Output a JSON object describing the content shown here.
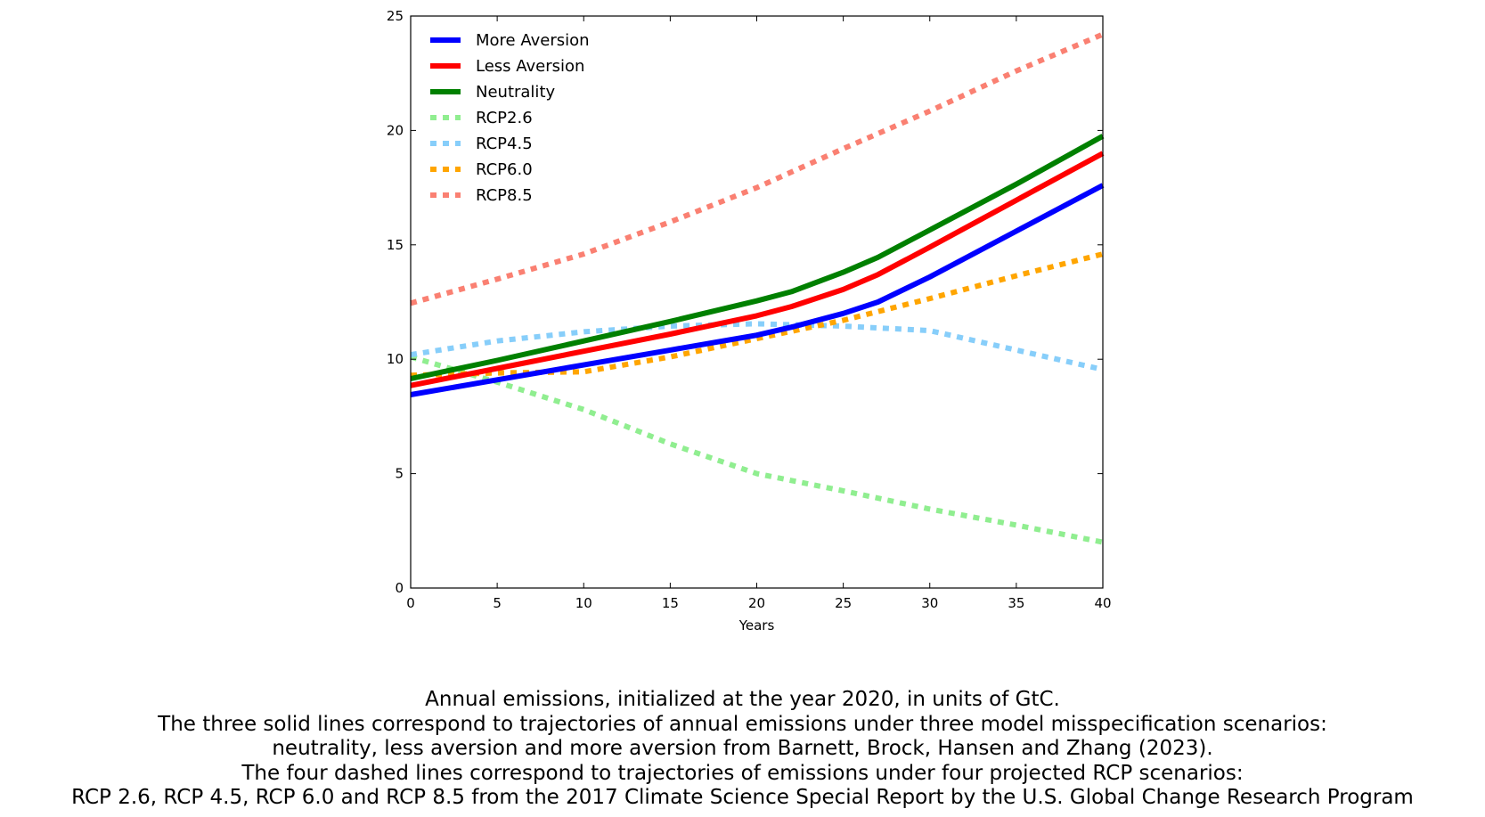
{
  "chart_data": {
    "type": "line",
    "title": "",
    "xlabel": "Years",
    "ylabel": "",
    "xlim": [
      0,
      40
    ],
    "ylim": [
      0,
      25
    ],
    "xticks": [
      0,
      5,
      10,
      15,
      20,
      25,
      30,
      35,
      40
    ],
    "yticks": [
      0,
      5,
      10,
      15,
      20,
      25
    ],
    "grid": false,
    "legend_position": "top-left",
    "series": [
      {
        "name": "More Aversion",
        "style": "solid",
        "color": "#0000ff",
        "x": [
          0,
          5,
          10,
          15,
          20,
          22,
          25,
          27,
          30,
          35,
          40
        ],
        "y": [
          8.45,
          9.1,
          9.75,
          10.4,
          11.05,
          11.4,
          12.0,
          12.5,
          13.6,
          15.6,
          17.6
        ]
      },
      {
        "name": "Less Aversion",
        "style": "solid",
        "color": "#ff0000",
        "x": [
          0,
          5,
          10,
          15,
          20,
          22,
          25,
          27,
          30,
          35,
          40
        ],
        "y": [
          8.85,
          9.6,
          10.35,
          11.1,
          11.9,
          12.3,
          13.05,
          13.7,
          14.9,
          16.95,
          19.0
        ]
      },
      {
        "name": "Neutrality",
        "style": "solid",
        "color": "#008000",
        "x": [
          0,
          5,
          10,
          15,
          20,
          22,
          25,
          27,
          30,
          35,
          40
        ],
        "y": [
          9.15,
          9.95,
          10.8,
          11.65,
          12.55,
          12.95,
          13.8,
          14.45,
          15.65,
          17.65,
          19.75
        ]
      },
      {
        "name": "RCP2.6",
        "style": "dashed",
        "color": "#90ee90",
        "x": [
          0,
          5,
          10,
          15,
          20,
          25,
          30,
          35,
          40
        ],
        "y": [
          10.1,
          9.0,
          7.8,
          6.3,
          5.0,
          4.25,
          3.45,
          2.75,
          2.0
        ]
      },
      {
        "name": "RCP4.5",
        "style": "dashed",
        "color": "#87cefa",
        "x": [
          0,
          5,
          10,
          15,
          20,
          25,
          30,
          35,
          40
        ],
        "y": [
          10.2,
          10.8,
          11.2,
          11.45,
          11.55,
          11.45,
          11.25,
          10.4,
          9.55
        ]
      },
      {
        "name": "RCP6.0",
        "style": "dashed",
        "color": "#ffa500",
        "x": [
          0,
          5,
          10,
          15,
          20,
          25,
          30,
          35,
          40
        ],
        "y": [
          9.3,
          9.4,
          9.45,
          10.1,
          10.9,
          11.7,
          12.65,
          13.65,
          14.6
        ]
      },
      {
        "name": "RCP8.5",
        "style": "dashed",
        "color": "#fa8072",
        "x": [
          0,
          5,
          10,
          15,
          20,
          25,
          30,
          35,
          40
        ],
        "y": [
          12.45,
          13.5,
          14.6,
          16.0,
          17.5,
          19.2,
          20.85,
          22.6,
          24.2
        ]
      }
    ]
  },
  "caption": [
    "Annual emissions, initialized at the year 2020, in units of GtC.",
    "The three solid lines correspond to trajectories of annual emissions under three model misspecification scenarios:",
    "neutrality, less aversion and more aversion from Barnett, Brock, Hansen and Zhang (2023).",
    "The four dashed lines correspond to trajectories of emissions under four projected RCP scenarios:",
    "RCP 2.6, RCP 4.5, RCP 6.0 and RCP 8.5 from the 2017 Climate Science Special Report by the U.S. Global Change Research Program"
  ]
}
